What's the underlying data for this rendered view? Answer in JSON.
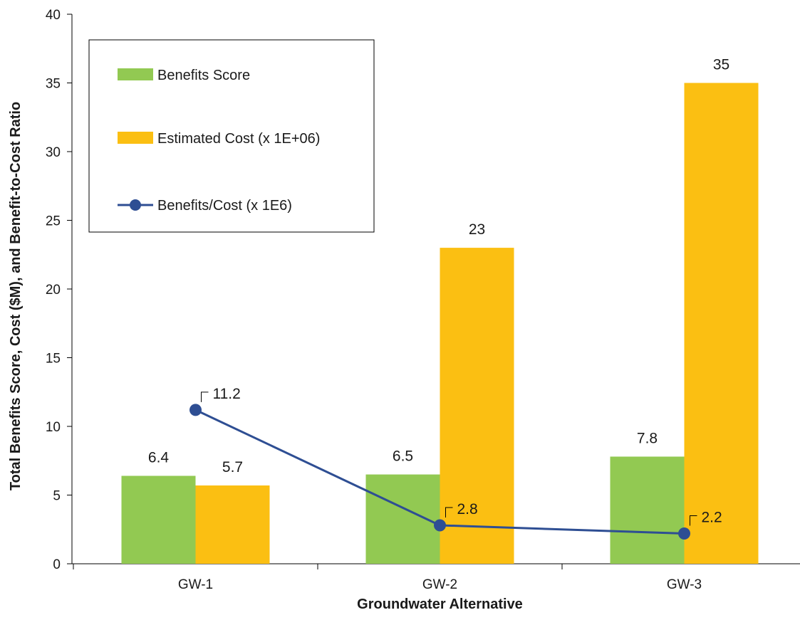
{
  "chart_data": {
    "type": "bar",
    "categories": [
      "GW-1",
      "GW-2",
      "GW-3"
    ],
    "series": [
      {
        "name": "Benefits Score",
        "kind": "bar",
        "color": "#92C952",
        "values": [
          6.4,
          6.5,
          7.8
        ],
        "labels": [
          "6.4",
          "6.5",
          "7.8"
        ]
      },
      {
        "name": "Estimated Cost (x 1E+06)",
        "kind": "bar",
        "color": "#FBBF12",
        "values": [
          5.7,
          23,
          35
        ],
        "labels": [
          "5.7",
          "23",
          "35"
        ]
      },
      {
        "name": "Benefits/Cost (x 1E6)",
        "kind": "line",
        "color": "#2E4E93",
        "values": [
          11.2,
          2.8,
          2.2
        ],
        "labels": [
          "11.2",
          "2.8",
          "2.2"
        ]
      }
    ],
    "xlabel": "Groundwater Alternative",
    "ylabel": "Total Benefits Score, Cost ($M), and Benefit-to-Cost Ratio",
    "ylim": [
      0,
      40
    ],
    "yticks": [
      0,
      5,
      10,
      15,
      20,
      25,
      30,
      35,
      40
    ],
    "grid": false,
    "legend_position": "top-left"
  }
}
